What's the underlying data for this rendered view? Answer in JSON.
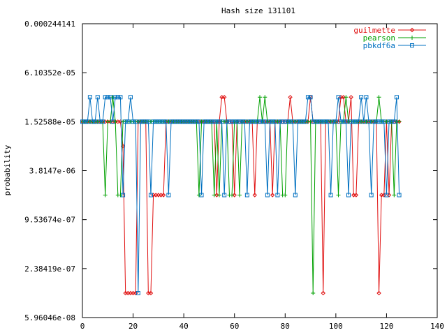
{
  "chart_data": {
    "type": "line",
    "title": "Hash size 131101",
    "xlabel": "",
    "ylabel": "probability",
    "y_scale": "log2",
    "xlim": [
      0,
      140
    ],
    "ylim": [
      5.96046e-08,
      0.000244141
    ],
    "x_ticks": [
      0,
      20,
      40,
      60,
      80,
      100,
      120,
      140
    ],
    "y_ticks": [
      {
        "value": 0.000244141,
        "label": "0.000244141"
      },
      {
        "value": 6.10352e-05,
        "label": "6.10352e-05"
      },
      {
        "value": 1.52588e-05,
        "label": "1.52588e-05"
      },
      {
        "value": 3.8147e-06,
        "label": "3.8147e-06"
      },
      {
        "value": 9.53674e-07,
        "label": "9.53674e-07"
      },
      {
        "value": 2.38419e-07,
        "label": "2.38419e-07"
      },
      {
        "value": 5.96046e-08,
        "label": "5.96046e-08"
      }
    ],
    "legend_position": "top-right",
    "series": [
      {
        "name": "guilmette",
        "color": "#e01010",
        "marker": "diamond",
        "values": [
          {
            "x": 16,
            "y": 7.63e-06
          },
          {
            "x": 17,
            "y": 1.19e-07
          },
          {
            "x": 18,
            "y": 1.19e-07
          },
          {
            "x": 19,
            "y": 1.19e-07
          },
          {
            "x": 20,
            "y": 1.19e-07
          },
          {
            "x": 21,
            "y": 1.19e-07
          },
          {
            "x": 26,
            "y": 1.19e-07
          },
          {
            "x": 27,
            "y": 1.19e-07
          },
          {
            "x": 28,
            "y": 1.91e-06
          },
          {
            "x": 29,
            "y": 1.91e-06
          },
          {
            "x": 30,
            "y": 1.91e-06
          },
          {
            "x": 31,
            "y": 1.91e-06
          },
          {
            "x": 32,
            "y": 1.91e-06
          },
          {
            "x": 53,
            "y": 1.91e-06
          },
          {
            "x": 55,
            "y": 3.05e-05
          },
          {
            "x": 56,
            "y": 3.05e-05
          },
          {
            "x": 60,
            "y": 1.91e-06
          },
          {
            "x": 68,
            "y": 1.91e-06
          },
          {
            "x": 75,
            "y": 1.91e-06
          },
          {
            "x": 82,
            "y": 3.05e-05
          },
          {
            "x": 90,
            "y": 3.05e-05
          },
          {
            "x": 95,
            "y": 1.19e-07
          },
          {
            "x": 102,
            "y": 3.05e-05
          },
          {
            "x": 103,
            "y": 3.05e-05
          },
          {
            "x": 106,
            "y": 3.05e-05
          },
          {
            "x": 107,
            "y": 1.91e-06
          },
          {
            "x": 108,
            "y": 1.91e-06
          },
          {
            "x": 117,
            "y": 1.19e-07
          },
          {
            "x": 118,
            "y": 1.91e-06
          },
          {
            "x": 119,
            "y": 1.91e-06
          },
          {
            "x": 121,
            "y": 1.91e-06
          }
        ]
      },
      {
        "name": "pearson",
        "color": "#00a000",
        "marker": "plus",
        "values": [
          {
            "x": 9,
            "y": 1.91e-06
          },
          {
            "x": 12,
            "y": 3.05e-05
          },
          {
            "x": 14,
            "y": 1.91e-06
          },
          {
            "x": 15,
            "y": 1.91e-06
          },
          {
            "x": 46,
            "y": 1.91e-06
          },
          {
            "x": 52,
            "y": 1.91e-06
          },
          {
            "x": 54,
            "y": 1.91e-06
          },
          {
            "x": 58,
            "y": 1.91e-06
          },
          {
            "x": 59,
            "y": 1.91e-06
          },
          {
            "x": 62,
            "y": 1.91e-06
          },
          {
            "x": 70,
            "y": 3.05e-05
          },
          {
            "x": 72,
            "y": 3.05e-05
          },
          {
            "x": 79,
            "y": 1.91e-06
          },
          {
            "x": 80,
            "y": 1.91e-06
          },
          {
            "x": 91,
            "y": 1.19e-07
          },
          {
            "x": 101,
            "y": 1.91e-06
          },
          {
            "x": 104,
            "y": 3.05e-05
          },
          {
            "x": 117,
            "y": 3.05e-05
          },
          {
            "x": 123,
            "y": 1.91e-06
          }
        ]
      },
      {
        "name": "pbkdf6a",
        "color": "#0070c0",
        "marker": "square",
        "values": [
          {
            "x": 3,
            "y": 3.05e-05
          },
          {
            "x": 6,
            "y": 3.05e-05
          },
          {
            "x": 9,
            "y": 3.05e-05
          },
          {
            "x": 10,
            "y": 3.05e-05
          },
          {
            "x": 11,
            "y": 3.05e-05
          },
          {
            "x": 13,
            "y": 3.05e-05
          },
          {
            "x": 14,
            "y": 3.05e-05
          },
          {
            "x": 15,
            "y": 3.05e-05
          },
          {
            "x": 16,
            "y": 1.91e-06
          },
          {
            "x": 19,
            "y": 3.05e-05
          },
          {
            "x": 22,
            "y": 1.19e-07
          },
          {
            "x": 27,
            "y": 1.91e-06
          },
          {
            "x": 34,
            "y": 1.91e-06
          },
          {
            "x": 47,
            "y": 1.91e-06
          },
          {
            "x": 56,
            "y": 1.91e-06
          },
          {
            "x": 65,
            "y": 1.91e-06
          },
          {
            "x": 73,
            "y": 1.91e-06
          },
          {
            "x": 77,
            "y": 1.91e-06
          },
          {
            "x": 84,
            "y": 1.91e-06
          },
          {
            "x": 89,
            "y": 3.05e-05
          },
          {
            "x": 90,
            "y": 3.05e-05
          },
          {
            "x": 98,
            "y": 1.91e-06
          },
          {
            "x": 101,
            "y": 3.05e-05
          },
          {
            "x": 105,
            "y": 1.91e-06
          },
          {
            "x": 110,
            "y": 3.05e-05
          },
          {
            "x": 112,
            "y": 3.05e-05
          },
          {
            "x": 114,
            "y": 1.91e-06
          },
          {
            "x": 120,
            "y": 1.91e-06
          },
          {
            "x": 124,
            "y": 3.05e-05
          },
          {
            "x": 125,
            "y": 1.91e-06
          }
        ]
      }
    ],
    "baseline": {
      "y": 1.52588e-05,
      "x_from": 0,
      "x_to": 125
    }
  }
}
